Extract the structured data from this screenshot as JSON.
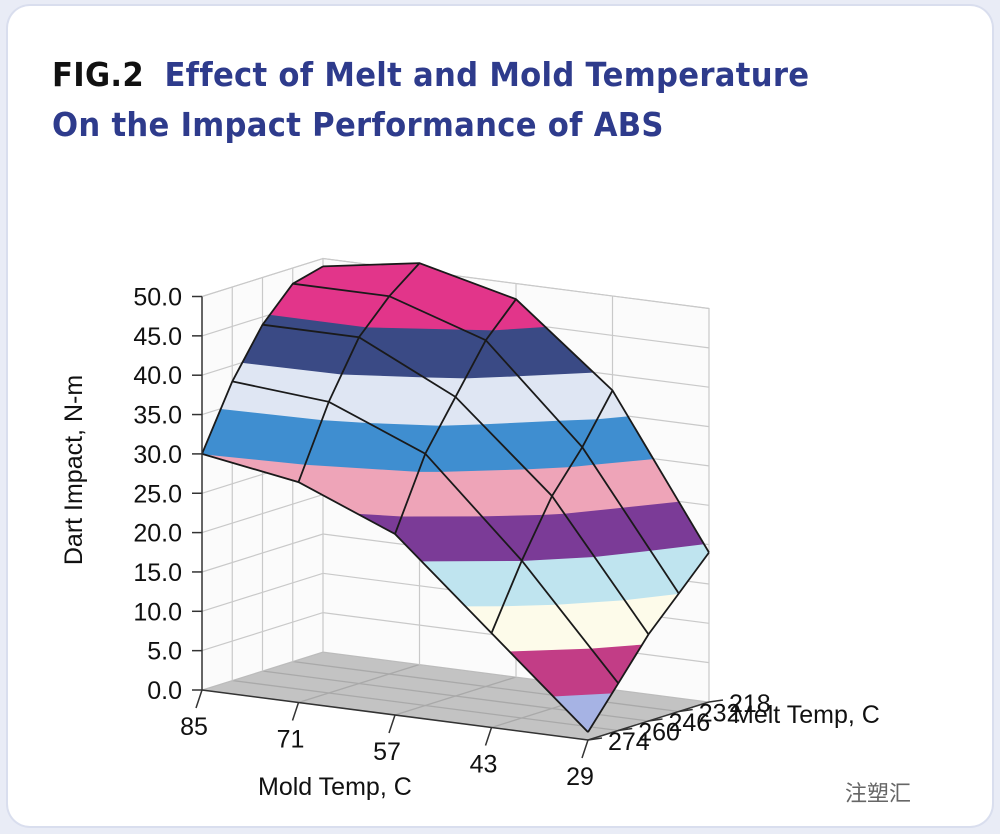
{
  "figure_label": "FIG.2",
  "title_line1": "Effect of Melt and Mold Temperature",
  "title_line2": "On the Impact Performance of ABS",
  "watermark": "注塑汇",
  "chart_data": {
    "type": "surface",
    "title": "Effect of Melt and Mold Temperature On the Impact Performance of ABS",
    "xlabel": "Mold Temp, C",
    "ylabel": "Melt Temp, C",
    "zlabel": "Dart Impact, N-m",
    "mold_temp": [
      "85",
      "71",
      "57",
      "43",
      "29"
    ],
    "melt_temp": [
      "274",
      "260",
      "246",
      "232",
      "218"
    ],
    "z_ticks": [
      "0.0",
      "5.0",
      "10.0",
      "15.0",
      "20.0",
      "25.0",
      "30.0",
      "35.0",
      "40.0",
      "45.0",
      "50.0"
    ],
    "zlim": [
      0,
      50
    ],
    "values_by_melt_temp": [
      {
        "melt_temp": "274",
        "values": [
          30,
          28,
          23,
          12,
          1
        ]
      },
      {
        "melt_temp": "260",
        "values": [
          38,
          37,
          32,
          20,
          6
        ]
      },
      {
        "melt_temp": "246",
        "values": [
          44,
          44,
          38,
          27,
          11
        ]
      },
      {
        "melt_temp": "232",
        "values": [
          48,
          48,
          44,
          32,
          15
        ]
      },
      {
        "melt_temp": "218",
        "values": [
          49,
          51,
          48,
          38,
          19
        ]
      }
    ],
    "color_bands": [
      {
        "from": 0,
        "to": 5,
        "color": "#a6b3e4"
      },
      {
        "from": 5,
        "to": 10,
        "color": "#c23d86"
      },
      {
        "from": 10,
        "to": 15,
        "color": "#fdfbea"
      },
      {
        "from": 15,
        "to": 20,
        "color": "#bfe4ef"
      },
      {
        "from": 20,
        "to": 25,
        "color": "#7b3b97"
      },
      {
        "from": 25,
        "to": 30,
        "color": "#eea4b8"
      },
      {
        "from": 30,
        "to": 35,
        "color": "#3f8ed0"
      },
      {
        "from": 35,
        "to": 40,
        "color": "#dfe6f3"
      },
      {
        "from": 40,
        "to": 45,
        "color": "#3a4a85"
      },
      {
        "from": 45,
        "to": 55,
        "color": "#e2358a"
      }
    ],
    "grid": true,
    "legend": "none"
  }
}
